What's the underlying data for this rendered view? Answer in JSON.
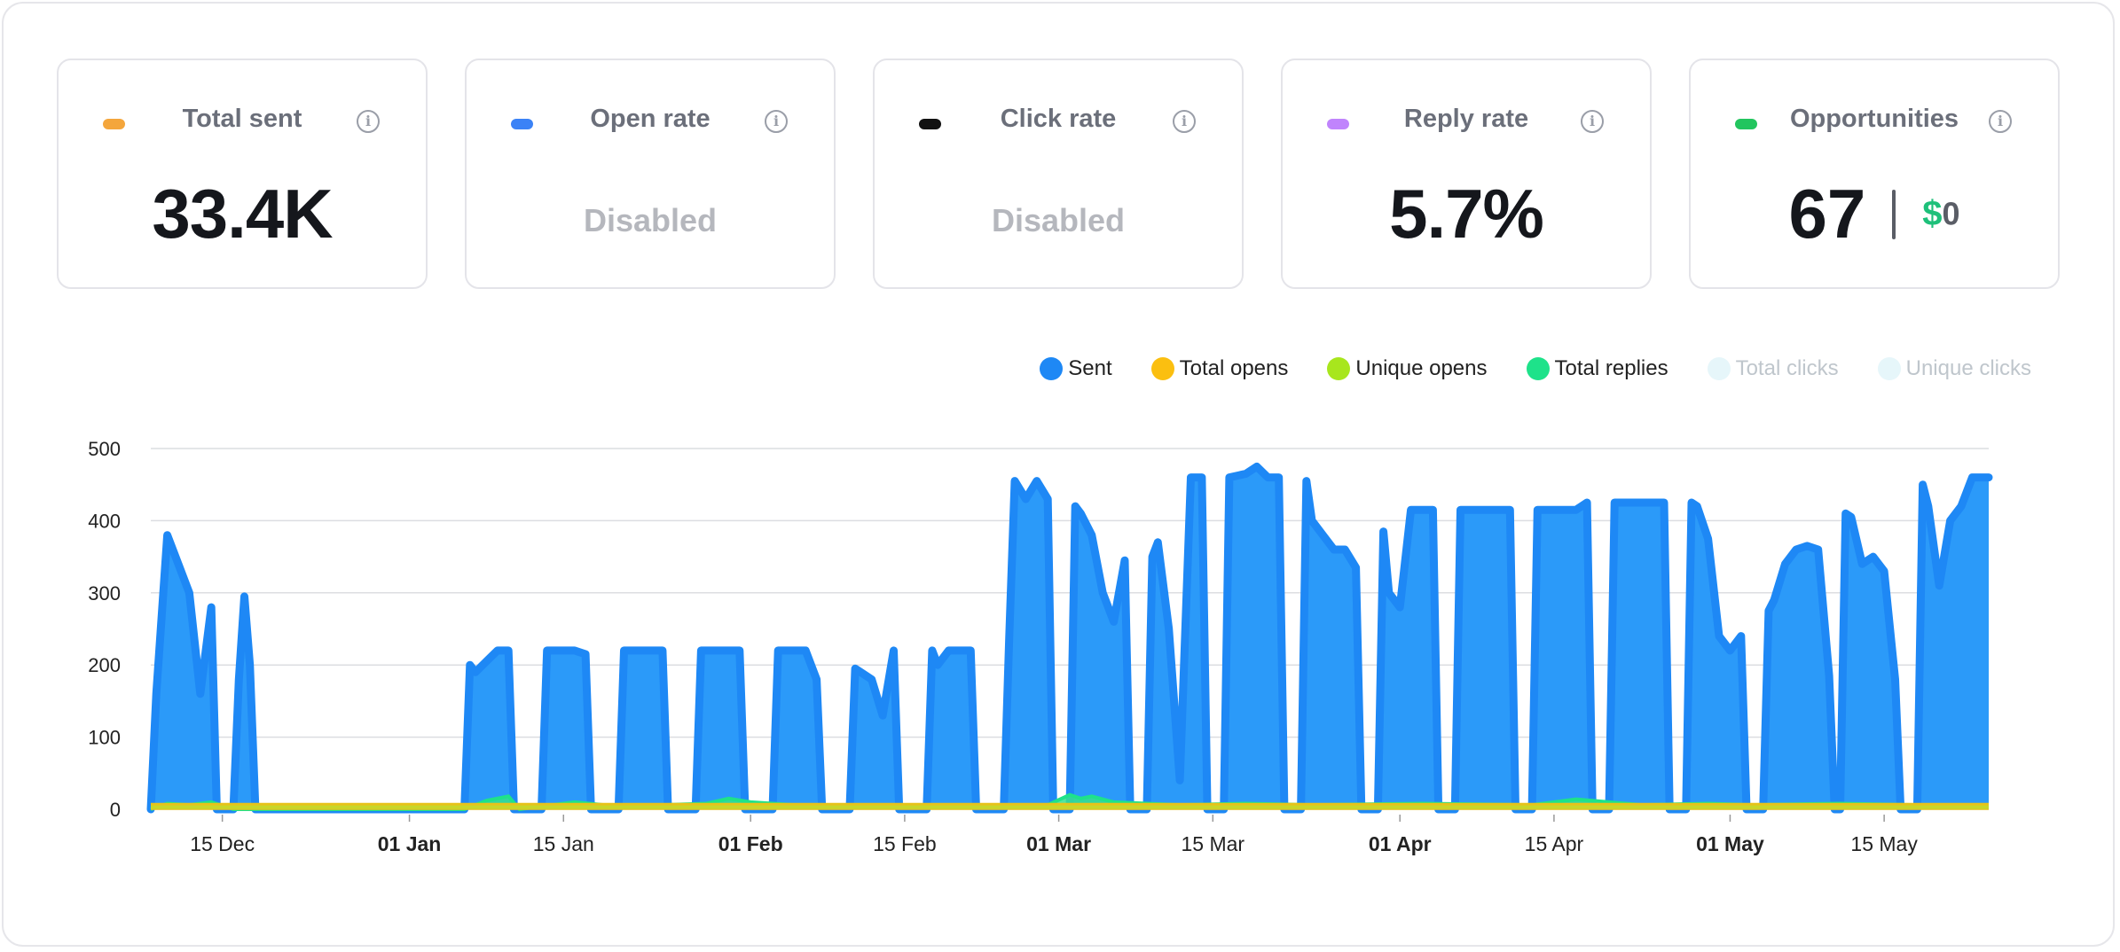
{
  "cards": [
    {
      "title": "Total sent",
      "value": "33.4K",
      "dot_color": "#f4a63c",
      "info_icon": "info-icon"
    },
    {
      "title": "Open rate",
      "value": "Disabled",
      "dot_color": "#3b82f6",
      "info_icon": "info-icon"
    },
    {
      "title": "Click rate",
      "value": "Disabled",
      "dot_color": "#111111",
      "info_icon": "info-icon"
    },
    {
      "title": "Reply rate",
      "value": "5.7%",
      "dot_color": "#c084fc",
      "info_icon": "info-icon"
    },
    {
      "title": "Opportunities",
      "value": "67",
      "currency": "$",
      "amount": "0",
      "dot_color": "#22c55e",
      "info_icon": "info-icon"
    }
  ],
  "chart_data": {
    "type": "area",
    "ylim": [
      0,
      500
    ],
    "y_ticks": [
      "0",
      "100",
      "200",
      "300",
      "400",
      "500"
    ],
    "grid": true,
    "legend_position": "top-right",
    "legend": [
      {
        "name": "Sent",
        "color": "#1e88f5",
        "active": true
      },
      {
        "name": "Total opens",
        "color": "#fbbf10",
        "active": true
      },
      {
        "name": "Unique opens",
        "color": "#a8e61d",
        "active": true
      },
      {
        "name": "Total replies",
        "color": "#1ee28a",
        "active": true
      },
      {
        "name": "Total clicks",
        "color": "#e6f6fa",
        "active": false
      },
      {
        "name": "Unique clicks",
        "color": "#e6f6fa",
        "active": false
      }
    ],
    "x_ticks": [
      {
        "label": "15 Dec",
        "day": 11,
        "bold": false
      },
      {
        "label": "01 Jan",
        "day": 28,
        "bold": true
      },
      {
        "label": "15 Jan",
        "day": 42,
        "bold": false
      },
      {
        "label": "01 Feb",
        "day": 59,
        "bold": true
      },
      {
        "label": "15 Feb",
        "day": 73,
        "bold": false
      },
      {
        "label": "01 Mar",
        "day": 87,
        "bold": true
      },
      {
        "label": "15 Mar",
        "day": 101,
        "bold": false
      },
      {
        "label": "01 Apr",
        "day": 118,
        "bold": true
      },
      {
        "label": "15 Apr",
        "day": 132,
        "bold": false
      },
      {
        "label": "01 May",
        "day": 148,
        "bold": true
      },
      {
        "label": "15 May",
        "day": 162,
        "bold": false
      }
    ],
    "x_domain": [
      4.5,
      171.5
    ],
    "sent": [
      [
        4.5,
        0
      ],
      [
        5,
        160
      ],
      [
        6,
        380
      ],
      [
        7,
        340
      ],
      [
        8,
        300
      ],
      [
        9,
        160
      ],
      [
        10,
        280
      ],
      [
        10.5,
        0
      ],
      [
        12,
        0
      ],
      [
        12.5,
        180
      ],
      [
        13,
        295
      ],
      [
        13.5,
        200
      ],
      [
        14,
        0
      ],
      [
        33,
        0
      ],
      [
        33.5,
        200
      ],
      [
        34,
        190
      ],
      [
        35,
        205
      ],
      [
        36,
        220
      ],
      [
        37,
        220
      ],
      [
        37.5,
        0
      ],
      [
        40,
        0
      ],
      [
        40.5,
        220
      ],
      [
        43,
        220
      ],
      [
        44,
        215
      ],
      [
        44.5,
        0
      ],
      [
        47,
        0
      ],
      [
        47.5,
        220
      ],
      [
        51,
        220
      ],
      [
        51.5,
        0
      ],
      [
        54,
        0
      ],
      [
        54.5,
        220
      ],
      [
        58,
        220
      ],
      [
        58.5,
        0
      ],
      [
        61,
        0
      ],
      [
        61.5,
        220
      ],
      [
        64,
        220
      ],
      [
        65,
        180
      ],
      [
        65.5,
        0
      ],
      [
        68,
        0
      ],
      [
        68.5,
        195
      ],
      [
        69,
        190
      ],
      [
        70,
        180
      ],
      [
        71,
        130
      ],
      [
        72,
        220
      ],
      [
        72.5,
        0
      ],
      [
        75,
        0
      ],
      [
        75.5,
        220
      ],
      [
        76,
        200
      ],
      [
        77,
        220
      ],
      [
        78,
        220
      ],
      [
        79,
        220
      ],
      [
        79.5,
        0
      ],
      [
        82,
        0
      ],
      [
        82.5,
        240
      ],
      [
        83,
        455
      ],
      [
        84,
        430
      ],
      [
        85,
        455
      ],
      [
        86,
        430
      ],
      [
        86.5,
        0
      ],
      [
        88,
        0
      ],
      [
        88.5,
        420
      ],
      [
        89,
        410
      ],
      [
        90,
        380
      ],
      [
        91,
        300
      ],
      [
        92,
        260
      ],
      [
        93,
        345
      ],
      [
        93.5,
        0
      ],
      [
        95,
        0
      ],
      [
        95.5,
        350
      ],
      [
        96,
        370
      ],
      [
        97,
        250
      ],
      [
        98,
        40
      ],
      [
        99,
        460
      ],
      [
        100,
        460
      ],
      [
        100.5,
        0
      ],
      [
        102,
        0
      ],
      [
        102.5,
        460
      ],
      [
        104,
        465
      ],
      [
        105,
        475
      ],
      [
        106,
        460
      ],
      [
        107,
        460
      ],
      [
        107.5,
        0
      ],
      [
        109,
        0
      ],
      [
        109.5,
        455
      ],
      [
        110,
        400
      ],
      [
        111,
        380
      ],
      [
        112,
        360
      ],
      [
        113,
        360
      ],
      [
        114,
        335
      ],
      [
        114.5,
        0
      ],
      [
        116,
        0
      ],
      [
        116.5,
        385
      ],
      [
        117,
        300
      ],
      [
        118,
        280
      ],
      [
        119,
        415
      ],
      [
        121,
        415
      ],
      [
        121.5,
        0
      ],
      [
        123,
        0
      ],
      [
        123.5,
        415
      ],
      [
        128,
        415
      ],
      [
        128.5,
        0
      ],
      [
        130,
        0
      ],
      [
        130.5,
        415
      ],
      [
        134,
        415
      ],
      [
        135,
        425
      ],
      [
        135.5,
        0
      ],
      [
        137,
        0
      ],
      [
        137.5,
        425
      ],
      [
        142,
        425
      ],
      [
        142.5,
        0
      ],
      [
        144,
        0
      ],
      [
        144.5,
        425
      ],
      [
        145,
        420
      ],
      [
        146,
        375
      ],
      [
        147,
        240
      ],
      [
        148,
        220
      ],
      [
        149,
        240
      ],
      [
        149.5,
        0
      ],
      [
        151,
        0
      ],
      [
        151.5,
        275
      ],
      [
        152,
        290
      ],
      [
        153,
        340
      ],
      [
        154,
        360
      ],
      [
        155,
        365
      ],
      [
        156,
        360
      ],
      [
        157,
        185
      ],
      [
        157.5,
        0
      ],
      [
        158,
        0
      ],
      [
        158.5,
        410
      ],
      [
        159,
        405
      ],
      [
        160,
        340
      ],
      [
        161,
        350
      ],
      [
        162,
        330
      ],
      [
        163,
        180
      ],
      [
        163.5,
        0
      ],
      [
        165,
        0
      ],
      [
        165.5,
        450
      ],
      [
        166,
        420
      ],
      [
        167,
        310
      ],
      [
        168,
        400
      ],
      [
        169,
        420
      ],
      [
        170,
        460
      ],
      [
        171.5,
        460
      ]
    ],
    "total_replies": [
      [
        4.5,
        0
      ],
      [
        6,
        8
      ],
      [
        8,
        6
      ],
      [
        10,
        10
      ],
      [
        12,
        0
      ],
      [
        33,
        0
      ],
      [
        35,
        12
      ],
      [
        37,
        18
      ],
      [
        38,
        0
      ],
      [
        41,
        6
      ],
      [
        43,
        10
      ],
      [
        47,
        4
      ],
      [
        55,
        8
      ],
      [
        57,
        15
      ],
      [
        59,
        10
      ],
      [
        63,
        6
      ],
      [
        72,
        4
      ],
      [
        86,
        6
      ],
      [
        88,
        20
      ],
      [
        89,
        15
      ],
      [
        90,
        18
      ],
      [
        92,
        10
      ],
      [
        98,
        6
      ],
      [
        104,
        8
      ],
      [
        110,
        6
      ],
      [
        120,
        8
      ],
      [
        130,
        6
      ],
      [
        134,
        14
      ],
      [
        140,
        6
      ],
      [
        146,
        8
      ],
      [
        150,
        6
      ],
      [
        158,
        8
      ],
      [
        165,
        6
      ],
      [
        171.5,
        6
      ]
    ],
    "total_opens": [
      [
        4.5,
        4
      ],
      [
        171.5,
        4
      ]
    ],
    "unique_opens": [
      [
        4.5,
        3
      ],
      [
        171.5,
        3
      ]
    ]
  }
}
